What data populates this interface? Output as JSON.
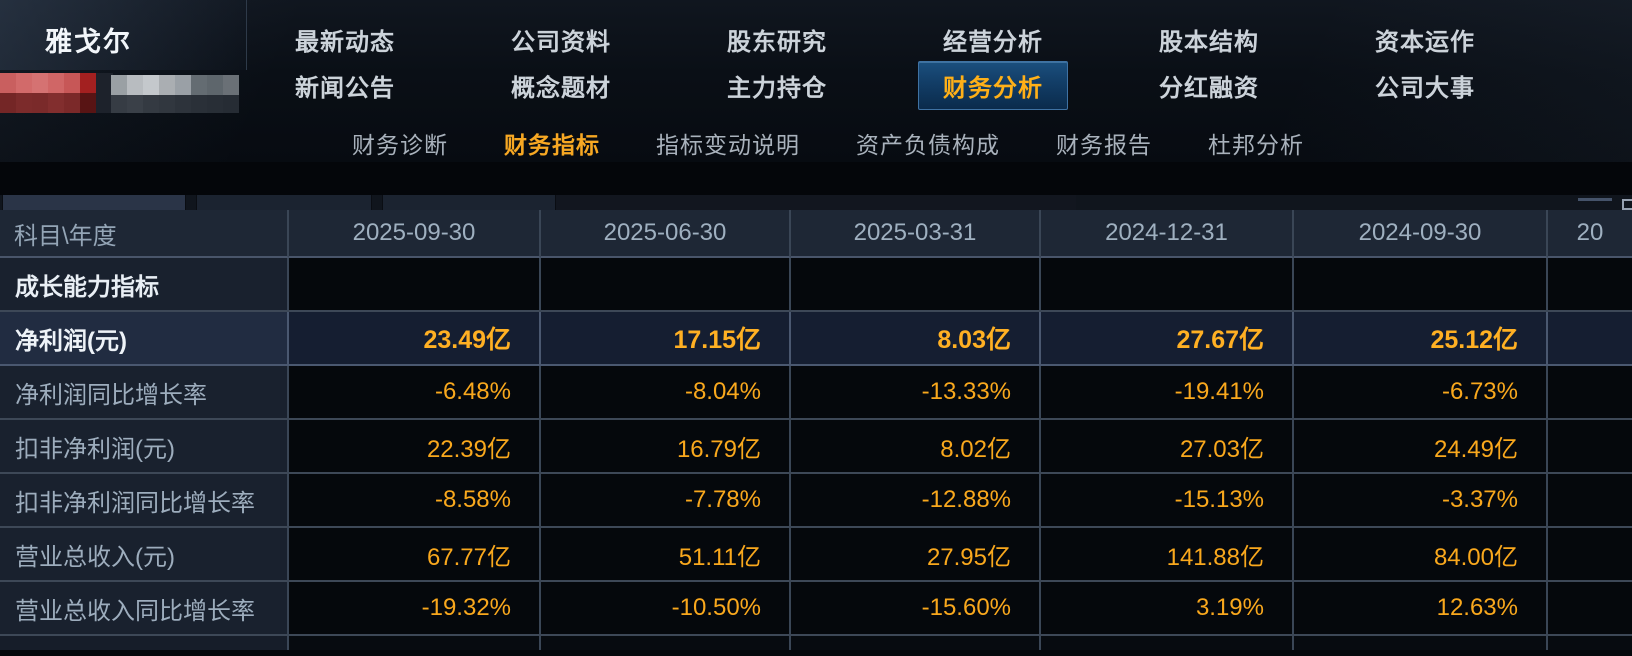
{
  "app": {
    "stock_name": "雅戈尔"
  },
  "nav": {
    "row1": [
      "最新动态",
      "公司资料",
      "股东研究",
      "经营分析",
      "股本结构",
      "资本运作"
    ],
    "row2": [
      "新闻公告",
      "概念题材",
      "主力持仓",
      "财务分析",
      "分红融资",
      "公司大事"
    ],
    "active_item": "财务分析"
  },
  "subnav": {
    "items": [
      "财务诊断",
      "财务指标",
      "指标变动说明",
      "资产负债构成",
      "财务报告",
      "杜邦分析"
    ],
    "active_item": "财务指标"
  },
  "table": {
    "corner_label": "科目\\年度",
    "columns": [
      "2025-09-30",
      "2025-06-30",
      "2025-03-31",
      "2024-12-31",
      "2024-09-30",
      "20"
    ],
    "rows": [
      {
        "label": "成长能力指标",
        "type": "section",
        "values": [
          "",
          "",
          "",
          "",
          "",
          ""
        ]
      },
      {
        "label": "净利润(元)",
        "type": "highlight",
        "values": [
          "23.49亿",
          "17.15亿",
          "8.03亿",
          "27.67亿",
          "25.12亿",
          ""
        ]
      },
      {
        "label": "净利润同比增长率",
        "type": "normal",
        "values": [
          "-6.48%",
          "-8.04%",
          "-13.33%",
          "-19.41%",
          "-6.73%",
          ""
        ]
      },
      {
        "label": "扣非净利润(元)",
        "type": "normal",
        "values": [
          "22.39亿",
          "16.79亿",
          "8.02亿",
          "27.03亿",
          "24.49亿",
          ""
        ]
      },
      {
        "label": "扣非净利润同比增长率",
        "type": "normal",
        "values": [
          "-8.58%",
          "-7.78%",
          "-12.88%",
          "-15.13%",
          "-3.37%",
          ""
        ]
      },
      {
        "label": "营业总收入(元)",
        "type": "normal",
        "values": [
          "67.77亿",
          "51.11亿",
          "27.95亿",
          "141.88亿",
          "84.00亿",
          ""
        ]
      },
      {
        "label": "营业总收入同比增长率",
        "type": "normal",
        "values": [
          "-19.32%",
          "-10.50%",
          "-15.60%",
          "3.19%",
          "12.63%",
          ""
        ]
      }
    ]
  },
  "colors": {
    "value_orange": "#f9a81d",
    "value_orange_bold": "#ffb023",
    "active_tab_text": "#ffb018",
    "active_tab_bg_top": "#1b4f7e",
    "active_tab_bg_bottom": "#0b2b4c",
    "table_label_bg": "#19212e",
    "highlight_row_bg": "#151e31",
    "header_bg": "#1e2735",
    "border": "#3d4857"
  }
}
